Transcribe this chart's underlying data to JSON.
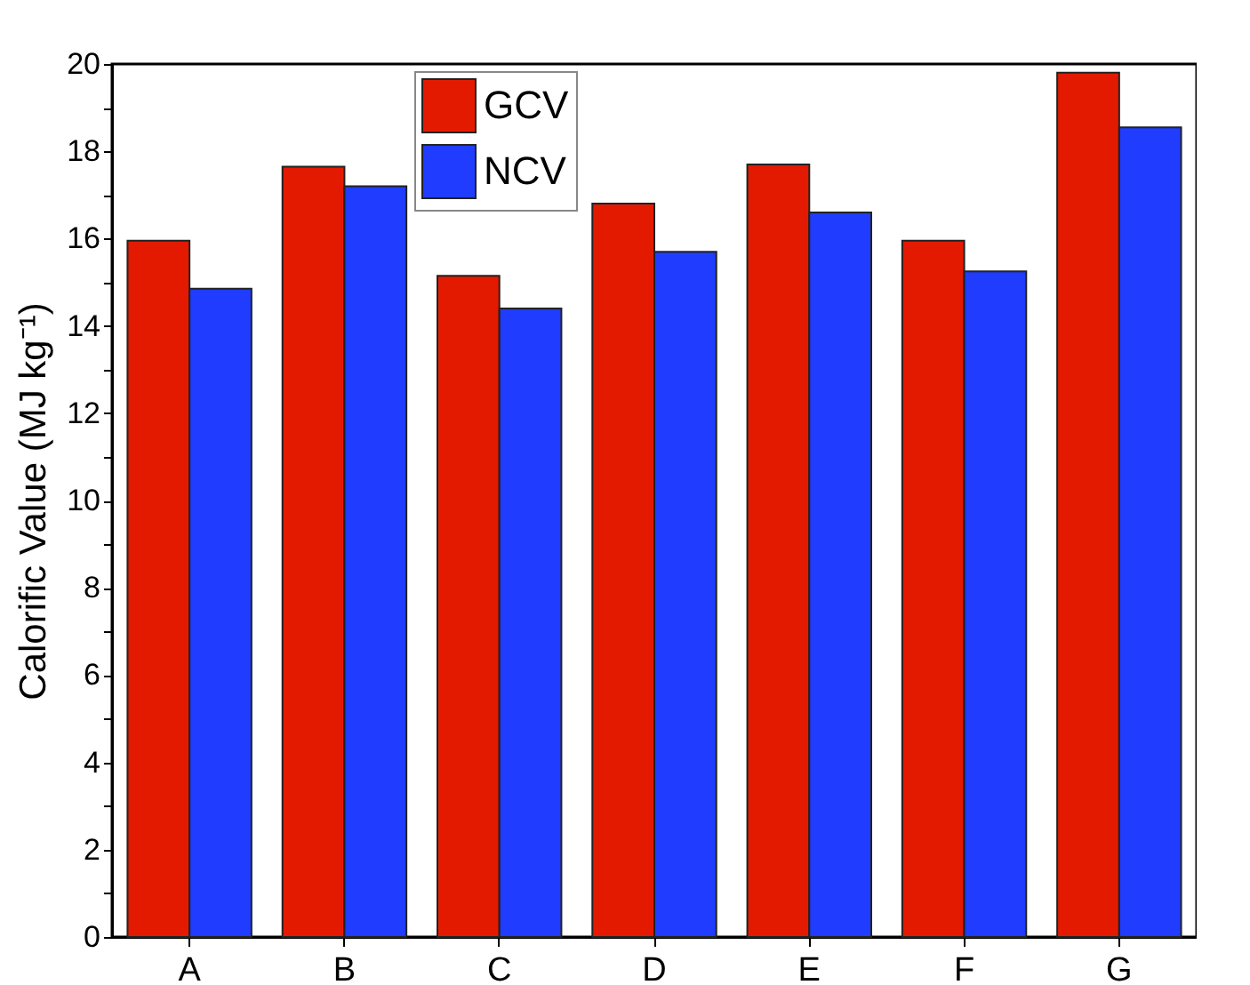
{
  "chart_data": {
    "type": "bar",
    "ylabel": "Calorific Value (MJ kg⁻¹)",
    "categories": [
      "A",
      "B",
      "C",
      "D",
      "E",
      "F",
      "G"
    ],
    "series": [
      {
        "name": "GCV",
        "color": "#e31a00",
        "values": [
          15.95,
          17.65,
          15.15,
          16.8,
          17.7,
          15.95,
          19.8
        ]
      },
      {
        "name": "NCV",
        "color": "#1f3cff",
        "values": [
          14.85,
          17.2,
          14.4,
          15.7,
          16.6,
          15.25,
          18.55
        ]
      }
    ],
    "ylim": [
      0,
      20
    ],
    "yticks": [
      0,
      {
        "value": 1,
        "label": null
      },
      2,
      {
        "value": 3,
        "label": null
      },
      4,
      {
        "value": 5,
        "label": null
      },
      6,
      {
        "value": 7,
        "label": null
      },
      8,
      {
        "value": 9,
        "label": null
      },
      10,
      {
        "value": 11,
        "label": null
      },
      12,
      {
        "value": 13,
        "label": null
      },
      14,
      {
        "value": 15,
        "label": null
      },
      16,
      {
        "value": 17,
        "label": null
      },
      18,
      {
        "value": 19,
        "label": null
      },
      20
    ],
    "grid": false,
    "legend": "top"
  }
}
